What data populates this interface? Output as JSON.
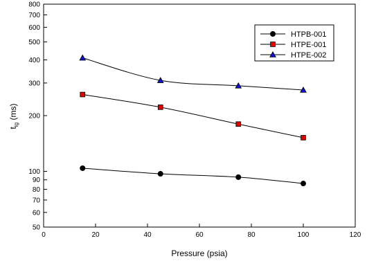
{
  "chart_data": {
    "type": "line",
    "title": "",
    "xlabel": "Pressure (psia)",
    "ylabel_main": "t",
    "ylabel_sub": "ig",
    "ylabel_unit": " (ms)",
    "x_scale": "linear",
    "y_scale": "log",
    "xlim": [
      0,
      120
    ],
    "ylim": [
      50,
      800
    ],
    "x_ticks": [
      0,
      20,
      40,
      60,
      80,
      100,
      120
    ],
    "y_ticks": [
      50,
      60,
      70,
      80,
      90,
      100,
      200,
      300,
      400,
      500,
      600,
      700,
      800
    ],
    "grid": false,
    "legend_position": "top-right",
    "series": [
      {
        "name": "HTPB-001",
        "marker": "circle",
        "color": "#000000",
        "x": [
          15,
          45,
          75,
          100
        ],
        "y": [
          104,
          97,
          93,
          86
        ]
      },
      {
        "name": "HTPE-001",
        "marker": "square",
        "color": "#e00000",
        "x": [
          15,
          45,
          75,
          100
        ],
        "y": [
          260,
          222,
          180,
          152
        ]
      },
      {
        "name": "HTPE-002",
        "marker": "triangle",
        "color": "#1010d0",
        "x": [
          15,
          45,
          75,
          100
        ],
        "y": [
          410,
          310,
          290,
          275
        ]
      }
    ]
  }
}
